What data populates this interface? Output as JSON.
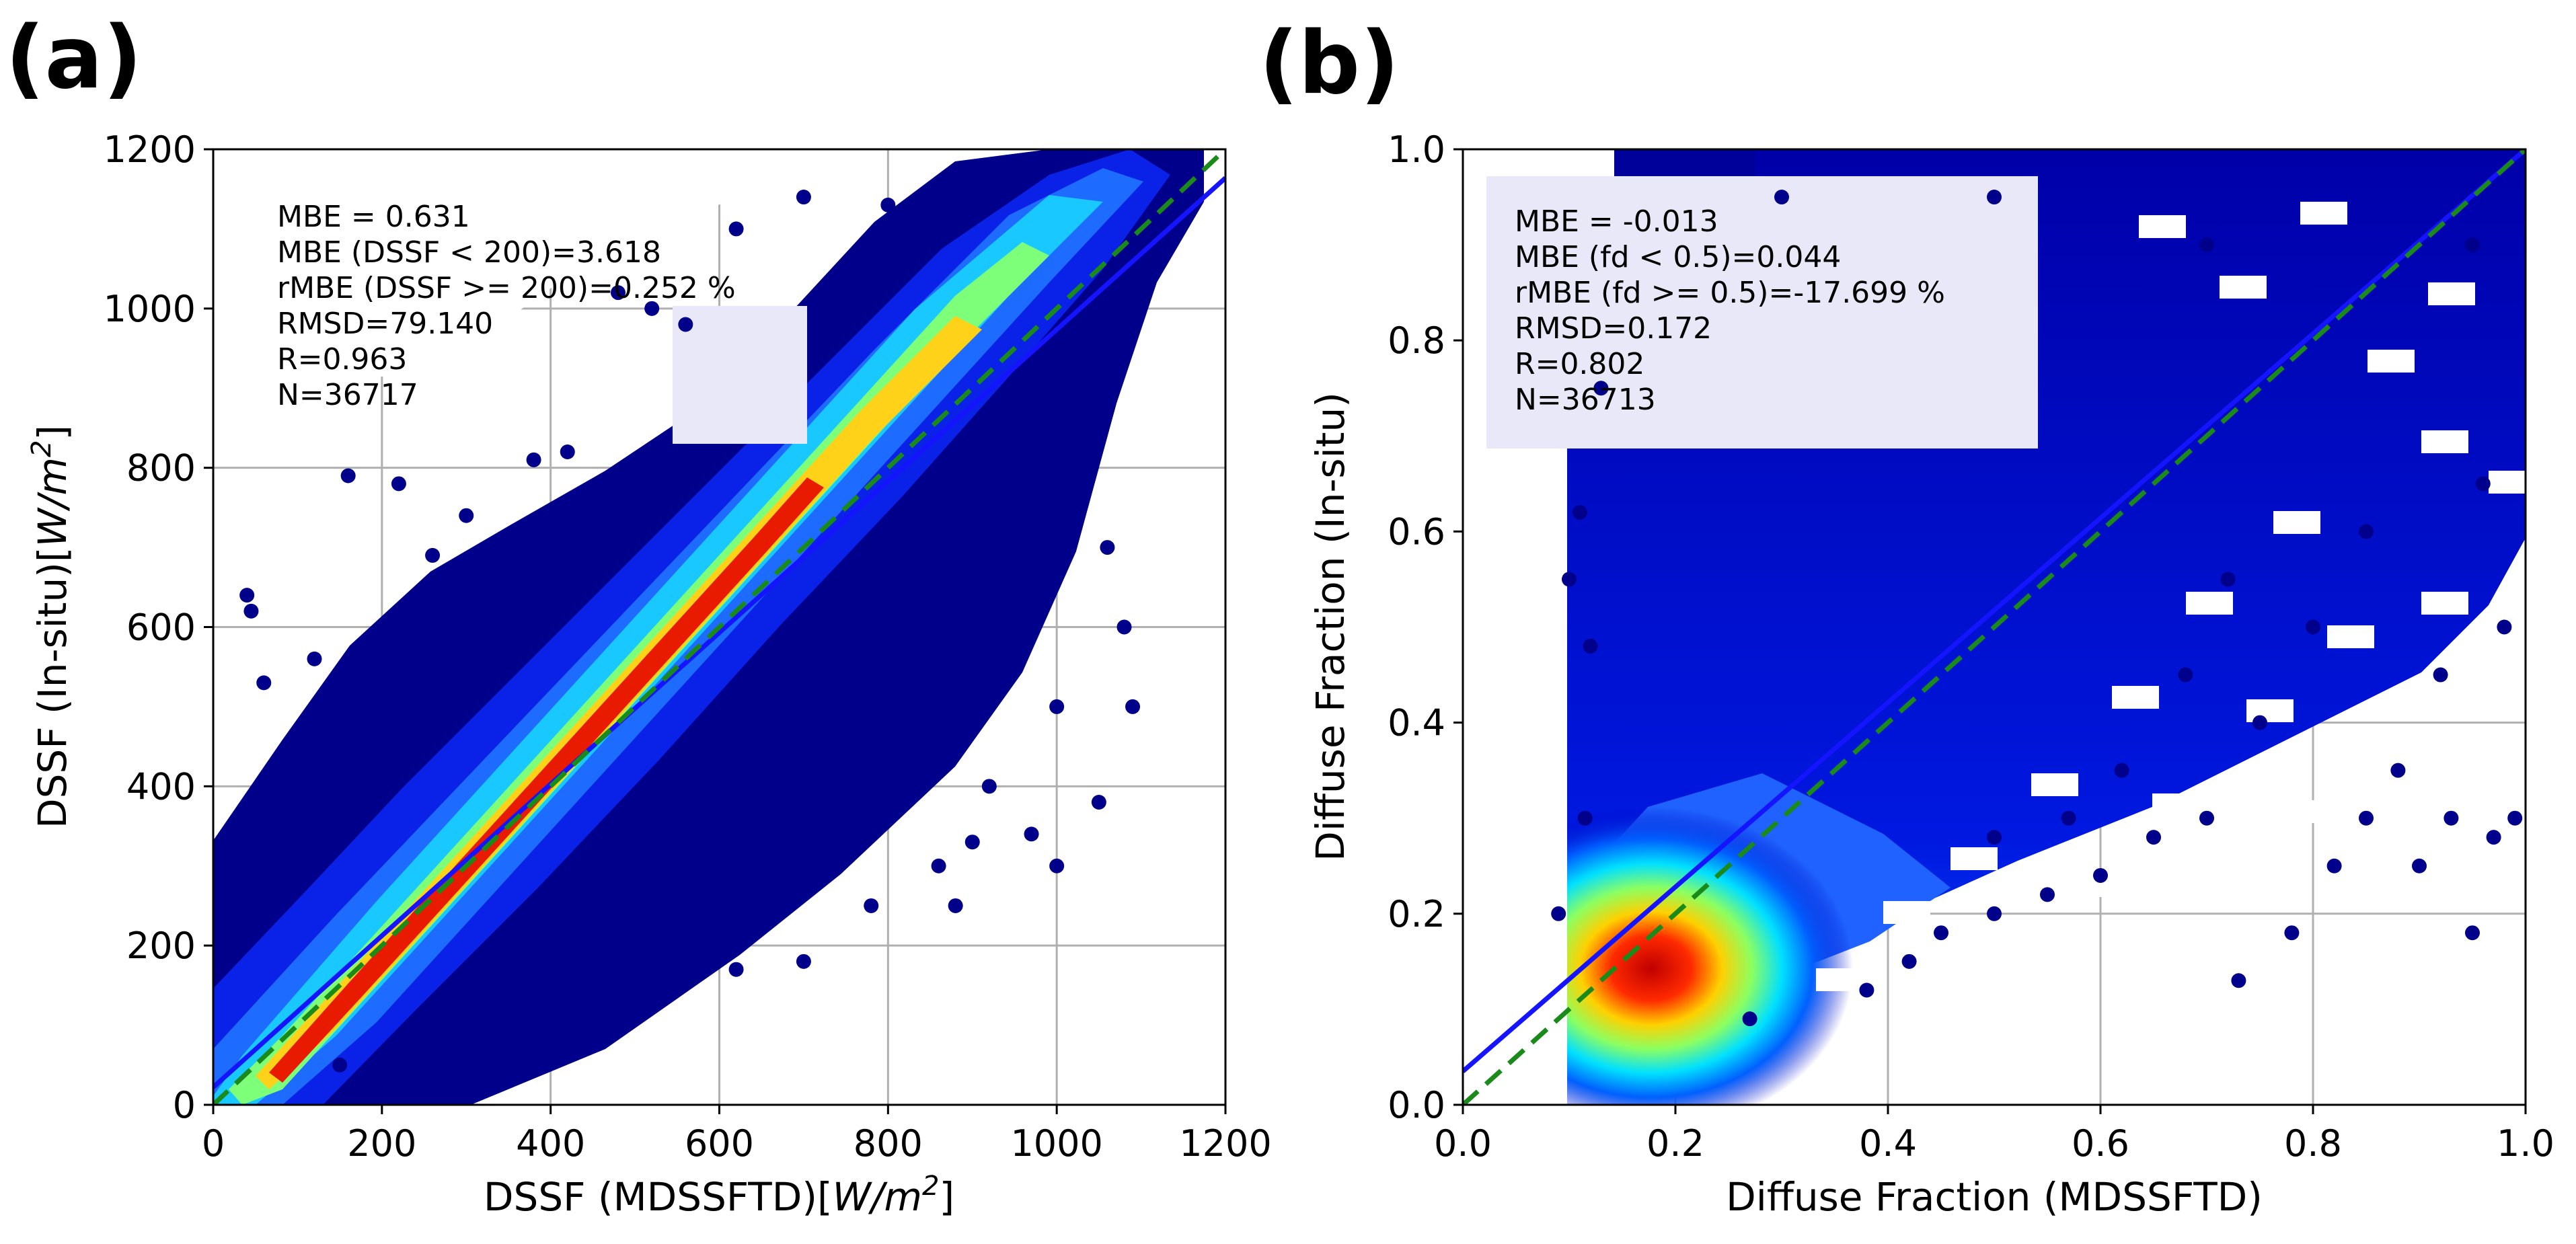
{
  "chart_data": [
    {
      "type": "scatter",
      "panel_label": "(a)",
      "xlabel_main": "DSSF (MDSSFTD)",
      "ylabel_main": "DSSF (In-situ)",
      "unit_base": "W/m",
      "unit_exp": "2",
      "xlim": [
        0,
        1200
      ],
      "ylim": [
        0,
        1200
      ],
      "xticks": [
        "0",
        "200",
        "400",
        "600",
        "800",
        "1000",
        "1200"
      ],
      "yticks": [
        "0",
        "200",
        "400",
        "600",
        "800",
        "1000",
        "1200"
      ],
      "grid": true,
      "stats": [
        "MBE = 0.631",
        "MBE (DSSF < 200)=3.618",
        "rMBE (DSSF >= 200)=0.252 %",
        "RMSD=79.140",
        "R=0.963",
        "N=36717"
      ],
      "one_to_one_line": {
        "color": "#1a8a1a",
        "style": "dashed",
        "x": [
          0,
          1200
        ],
        "y": [
          0,
          1200
        ]
      },
      "fit_line": {
        "color": "#1010ff",
        "x": [
          0,
          1200
        ],
        "y": [
          22,
          1164
        ]
      },
      "density_core": {
        "x": [
          0,
          200,
          400,
          600,
          800,
          1000,
          1100
        ],
        "y": [
          0,
          200,
          400,
          600,
          800,
          1000,
          1100
        ]
      },
      "outliers": [
        [
          40,
          640
        ],
        [
          45,
          620
        ],
        [
          120,
          560
        ],
        [
          160,
          790
        ],
        [
          220,
          780
        ],
        [
          260,
          690
        ],
        [
          300,
          740
        ],
        [
          340,
          700
        ],
        [
          380,
          810
        ],
        [
          420,
          820
        ],
        [
          480,
          1020
        ],
        [
          520,
          1000
        ],
        [
          560,
          980
        ],
        [
          620,
          1100
        ],
        [
          700,
          1140
        ],
        [
          760,
          1000
        ],
        [
          800,
          1130
        ],
        [
          840,
          1140
        ],
        [
          200,
          30
        ],
        [
          250,
          35
        ],
        [
          320,
          60
        ],
        [
          400,
          120
        ],
        [
          520,
          200
        ],
        [
          620,
          170
        ],
        [
          700,
          180
        ],
        [
          780,
          250
        ],
        [
          860,
          300
        ],
        [
          920,
          400
        ],
        [
          970,
          340
        ],
        [
          1000,
          300
        ],
        [
          1050,
          380
        ],
        [
          1090,
          500
        ],
        [
          1080,
          600
        ],
        [
          1060,
          700
        ],
        [
          1000,
          500
        ],
        [
          900,
          330
        ],
        [
          150,
          50
        ],
        [
          100,
          430
        ],
        [
          60,
          530
        ],
        [
          200,
          400
        ],
        [
          480,
          200
        ],
        [
          880,
          250
        ]
      ]
    },
    {
      "type": "scatter",
      "panel_label": "(b)",
      "xlabel": "Diffuse Fraction (MDSSFTD)",
      "ylabel": "Diffuse Fraction (In-situ)",
      "xlim": [
        0.0,
        1.0
      ],
      "ylim": [
        0.0,
        1.0
      ],
      "xticks": [
        "0.0",
        "0.2",
        "0.4",
        "0.6",
        "0.8",
        "1.0"
      ],
      "yticks": [
        "0.0",
        "0.2",
        "0.4",
        "0.6",
        "0.8",
        "1.0"
      ],
      "grid": true,
      "stats": [
        "MBE = -0.013",
        "MBE (fd < 0.5)=0.044",
        "rMBE (fd >= 0.5)=-17.699 %",
        "RMSD=0.172",
        "R=0.802",
        "N=36713"
      ],
      "one_to_one_line": {
        "color": "#1a8a1a",
        "style": "dashed",
        "x": [
          0.0,
          1.0
        ],
        "y": [
          0.0,
          1.0
        ]
      },
      "fit_line": {
        "color": "#1010ff",
        "x": [
          0.0,
          1.0
        ],
        "y": [
          0.035,
          1.0
        ]
      },
      "density_core": {
        "x": 0.17,
        "y": 0.12
      },
      "outliers": [
        [
          0.11,
          0.62
        ],
        [
          0.1,
          0.55
        ],
        [
          0.12,
          0.48
        ],
        [
          0.115,
          0.3
        ],
        [
          0.13,
          0.75
        ],
        [
          0.09,
          0.2
        ],
        [
          0.27,
          0.09
        ],
        [
          0.38,
          0.12
        ],
        [
          0.42,
          0.15
        ],
        [
          0.45,
          0.18
        ],
        [
          0.5,
          0.2
        ],
        [
          0.55,
          0.22
        ],
        [
          0.6,
          0.24
        ],
        [
          0.65,
          0.28
        ],
        [
          0.7,
          0.3
        ],
        [
          0.73,
          0.13
        ],
        [
          0.78,
          0.18
        ],
        [
          0.82,
          0.25
        ],
        [
          0.85,
          0.3
        ],
        [
          0.9,
          0.25
        ],
        [
          0.93,
          0.3
        ],
        [
          0.95,
          0.18
        ],
        [
          0.97,
          0.28
        ],
        [
          0.99,
          0.3
        ],
        [
          0.88,
          0.35
        ],
        [
          0.92,
          0.45
        ],
        [
          0.98,
          0.5
        ],
        [
          0.96,
          0.65
        ],
        [
          0.75,
          0.4
        ],
        [
          0.8,
          0.5
        ],
        [
          0.85,
          0.6
        ],
        [
          0.72,
          0.55
        ],
        [
          0.68,
          0.45
        ],
        [
          0.62,
          0.35
        ],
        [
          0.57,
          0.3
        ],
        [
          0.5,
          0.28
        ],
        [
          0.3,
          0.95
        ],
        [
          0.5,
          0.95
        ],
        [
          0.7,
          0.9
        ],
        [
          0.95,
          0.9
        ]
      ]
    }
  ]
}
